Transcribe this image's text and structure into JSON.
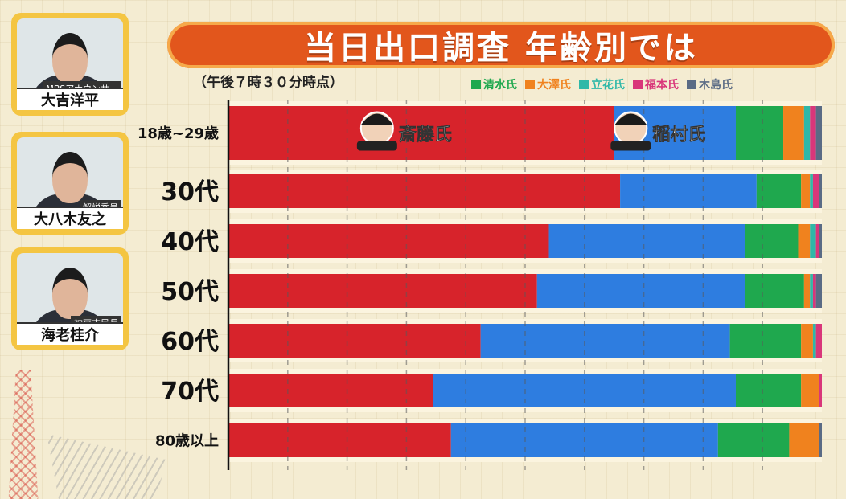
{
  "header": {
    "title": "当日出口調査 年齢別では"
  },
  "subtitle": "（午後７時３０分時点）",
  "panels": [
    {
      "name": "大吉洋平",
      "role": "MBSアナウンサー"
    },
    {
      "name": "大八木友之",
      "role": "解説委員"
    },
    {
      "name": "海老桂介",
      "role": "神戸支局長"
    }
  ],
  "colors": {
    "saito": "#d7232b",
    "inamura": "#2e7de0",
    "shimizu": "#1fa84e",
    "osawa": "#f0821e",
    "tachibana": "#2fb8a8",
    "fukumoto": "#d9367a",
    "kijima": "#5a6b85"
  },
  "chart_data": {
    "type": "bar",
    "orientation": "horizontal",
    "stacked": true,
    "categories": [
      "18歳~29歳",
      "30代",
      "40代",
      "50代",
      "60代",
      "70代",
      "80歳以上"
    ],
    "xlim": [
      0,
      100
    ],
    "series": [
      {
        "name": "斎藤氏",
        "values": [
          65.0,
          66.0,
          54.0,
          52.0,
          42.5,
          34.5,
          37.5
        ]
      },
      {
        "name": "稲村氏",
        "values": [
          20.5,
          23.0,
          33.0,
          35.0,
          42.0,
          51.0,
          45.0
        ]
      },
      {
        "name": "清水氏",
        "values": [
          8.0,
          7.5,
          9.0,
          10.0,
          12.0,
          11.0,
          12.0
        ]
      },
      {
        "name": "大澤氏",
        "values": [
          3.5,
          1.5,
          2.0,
          1.0,
          2.0,
          3.0,
          5.0
        ]
      },
      {
        "name": "立花氏",
        "values": [
          1.0,
          0.5,
          1.0,
          0.5,
          0.5,
          0.0,
          0.0
        ]
      },
      {
        "name": "福本氏",
        "values": [
          1.0,
          1.0,
          0.5,
          0.5,
          1.0,
          0.5,
          0.0
        ]
      },
      {
        "name": "木島氏",
        "values": [
          1.0,
          0.5,
          0.5,
          1.0,
          0.0,
          0.0,
          0.5
        ]
      }
    ],
    "bar_labels": [
      {
        "series": "斎藤氏",
        "row": 0,
        "text": "斎藤氏"
      },
      {
        "series": "稲村氏",
        "row": 0,
        "text": "稲村氏"
      }
    ],
    "legend": [
      "清水氏",
      "大澤氏",
      "立花氏",
      "福本氏",
      "木島氏"
    ],
    "legend_position": "top-right",
    "grid": true
  }
}
